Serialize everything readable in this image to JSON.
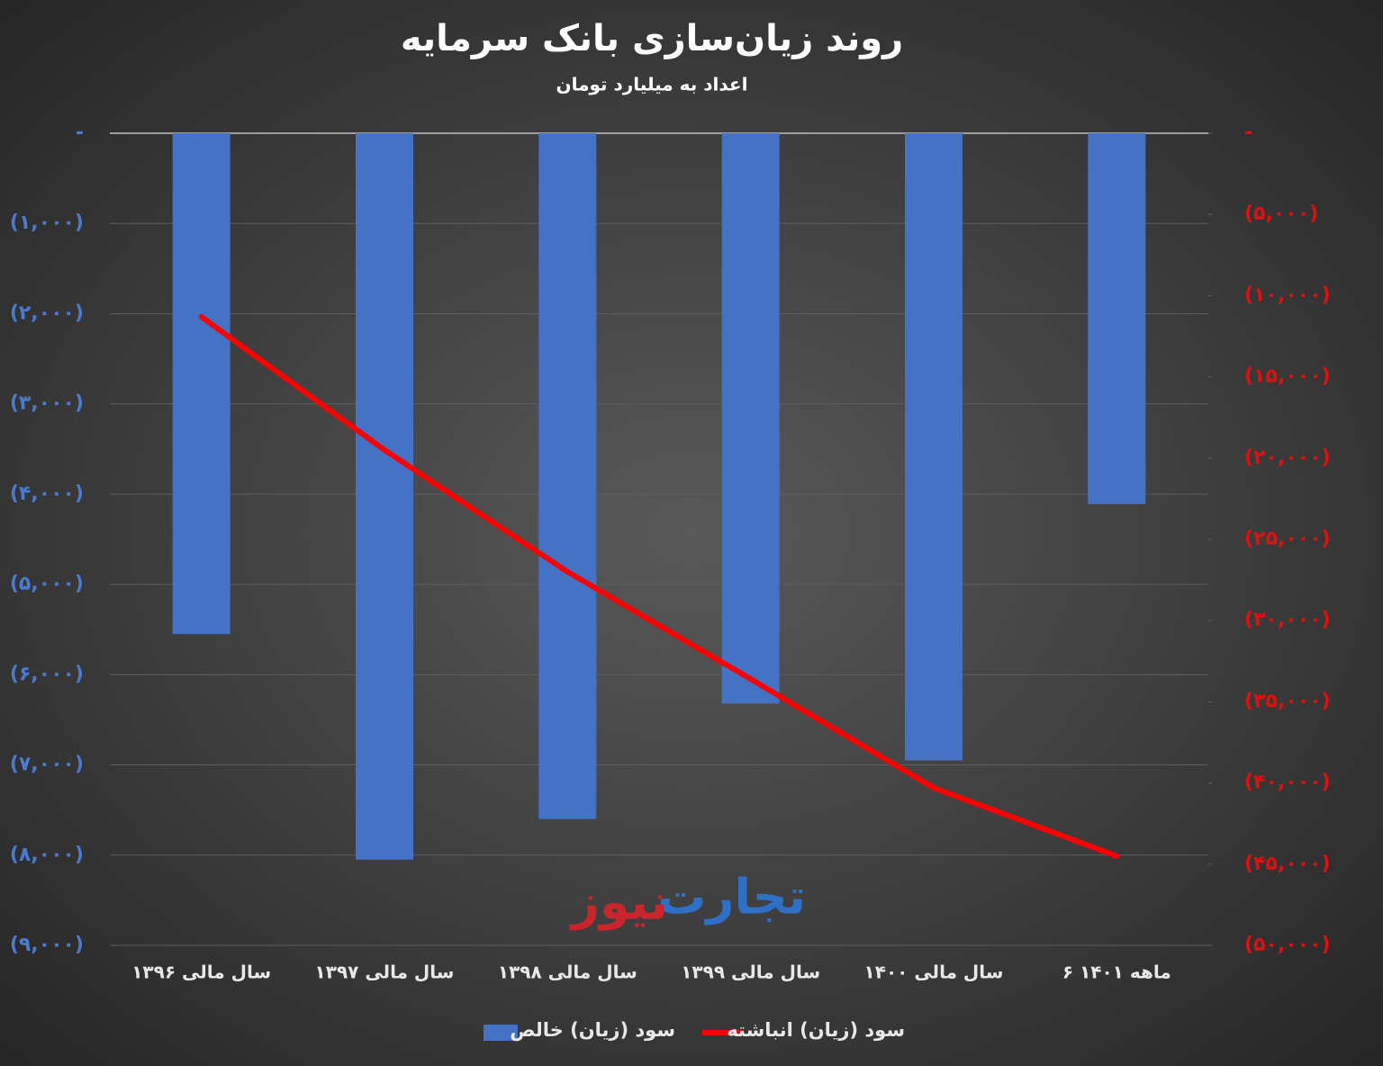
{
  "chart_data": {
    "type": "bar_line",
    "title": "روند زیان‌سازی بانک سرمایه",
    "subtitle": "اعداد به میلیارد تومان",
    "watermark": [
      "تجارت",
      "نیوز"
    ],
    "categories": [
      "سال مالی ۱۳۹۶",
      "سال مالی ۱۳۹۷",
      "سال مالی ۱۳۹۸",
      "سال مالی ۱۳۹۹",
      "سال مالی ۱۴۰۰",
      "۶ ماهه ۱۴۰۱"
    ],
    "series": [
      {
        "name": "سود (زیان) خالص",
        "type": "bar",
        "color": "#4472c4",
        "axis": "y",
        "values": [
          -5550,
          -8050,
          -7600,
          -6320,
          -6950,
          -4110
        ]
      },
      {
        "name": "سود (زیان) انباشته",
        "type": "line",
        "color": "#ff0000",
        "axis": "y2",
        "values": [
          -11300,
          -19500,
          -27000,
          -33600,
          -40300,
          -44500
        ]
      }
    ],
    "ylim": [
      -9000,
      0
    ],
    "yticks": [
      {
        "value": 0,
        "label": "-"
      },
      {
        "value": -1000,
        "label": "(۱,۰۰۰)"
      },
      {
        "value": -2000,
        "label": "(۲,۰۰۰)"
      },
      {
        "value": -3000,
        "label": "(۳,۰۰۰)"
      },
      {
        "value": -4000,
        "label": "(۴,۰۰۰)"
      },
      {
        "value": -5000,
        "label": "(۵,۰۰۰)"
      },
      {
        "value": -6000,
        "label": "(۶,۰۰۰)"
      },
      {
        "value": -7000,
        "label": "(۷,۰۰۰)"
      },
      {
        "value": -8000,
        "label": "(۸,۰۰۰)"
      },
      {
        "value": -9000,
        "label": "(۹,۰۰۰)"
      }
    ],
    "y2lim": [
      -50000,
      0
    ],
    "y2ticks": [
      {
        "value": 0,
        "label": "-"
      },
      {
        "value": -5000,
        "label": "(۵,۰۰۰)"
      },
      {
        "value": -10000,
        "label": "(۱۰,۰۰۰)"
      },
      {
        "value": -15000,
        "label": "(۱۵,۰۰۰)"
      },
      {
        "value": -20000,
        "label": "(۲۰,۰۰۰)"
      },
      {
        "value": -25000,
        "label": "(۲۵,۰۰۰)"
      },
      {
        "value": -30000,
        "label": "(۳۰,۰۰۰)"
      },
      {
        "value": -35000,
        "label": "(۳۵,۰۰۰)"
      },
      {
        "value": -40000,
        "label": "(۴۰,۰۰۰)"
      },
      {
        "value": -45000,
        "label": "(۴۵,۰۰۰)"
      },
      {
        "value": -50000,
        "label": "(۵۰,۰۰۰)"
      }
    ],
    "grid": true,
    "legend": "bottom"
  }
}
